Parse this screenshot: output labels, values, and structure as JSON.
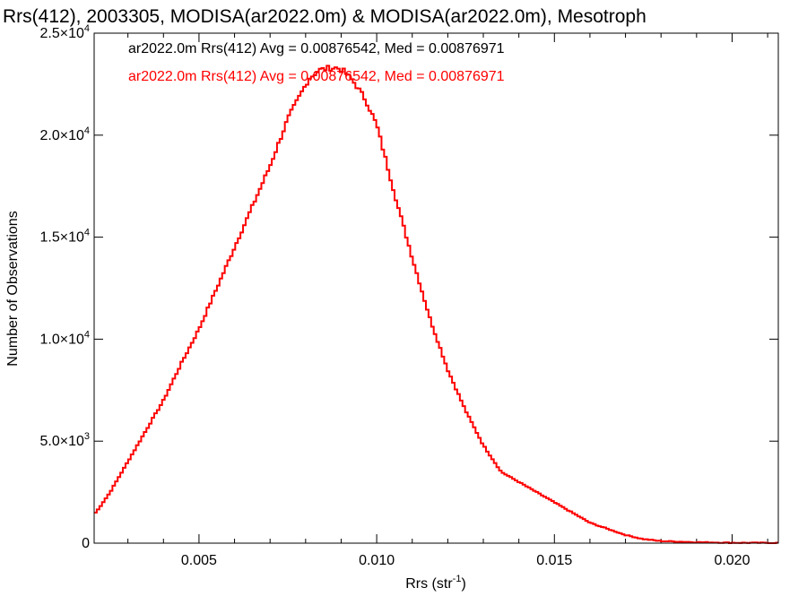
{
  "title": "Rrs(412), 2003305, MODISA(ar2022.0m) & MODISA(ar2022.0m), Mesotroph",
  "x_axis_label": "Rrs (str",
  "x_axis_label_sup": "-1",
  "x_axis_label_end": ")",
  "y_axis_label": "Number of Observations",
  "legend": [
    {
      "text": "ar2022.0m Rrs(412) Avg = 0.00876542, Med = 0.00876971",
      "color": "#000000"
    },
    {
      "text": "ar2022.0m Rrs(412) Avg = 0.00876542, Med = 0.00876971",
      "color": "#ff0000"
    }
  ],
  "chart_data": {
    "type": "histogram-step",
    "title": "Rrs(412), 2003305, MODISA(ar2022.0m) & MODISA(ar2022.0m), Mesotroph",
    "xlabel": "Rrs (str-1)",
    "ylabel": "Number of Observations",
    "xlim": [
      0.00205,
      0.0213
    ],
    "ylim": [
      0,
      25000
    ],
    "x_ticks": [
      {
        "value": 0.005,
        "label": "0.005"
      },
      {
        "value": 0.01,
        "label": "0.010"
      },
      {
        "value": 0.015,
        "label": "0.015"
      },
      {
        "value": 0.02,
        "label": "0.020"
      }
    ],
    "y_ticks": [
      {
        "value": 0,
        "mant": "0",
        "exp": ""
      },
      {
        "value": 5000,
        "mant": "5.0×10",
        "exp": "3"
      },
      {
        "value": 10000,
        "mant": "1.0×10",
        "exp": "4"
      },
      {
        "value": 15000,
        "mant": "1.5×10",
        "exp": "4"
      },
      {
        "value": 20000,
        "mant": "2.0×10",
        "exp": "4"
      },
      {
        "value": 25000,
        "mant": "2.5×10",
        "exp": "4"
      }
    ],
    "series": [
      {
        "name": "ar2022.0m Rrs(412)",
        "color": "#ff0000",
        "x": [
          0.0021,
          0.0025,
          0.003,
          0.0035,
          0.004,
          0.0045,
          0.005,
          0.0055,
          0.006,
          0.0065,
          0.007,
          0.0075,
          0.0078,
          0.0081,
          0.0084,
          0.0087,
          0.0089,
          0.0091,
          0.0094,
          0.0097,
          0.01,
          0.0103,
          0.0106,
          0.011,
          0.0115,
          0.012,
          0.0125,
          0.013,
          0.0135,
          0.014,
          0.0145,
          0.015,
          0.0155,
          0.016,
          0.0165,
          0.017,
          0.0175,
          0.018,
          0.019,
          0.02,
          0.0213
        ],
        "y": [
          1500,
          2500,
          4000,
          5500,
          7000,
          8800,
          10500,
          12500,
          14500,
          16500,
          18500,
          20800,
          21800,
          22800,
          23200,
          23300,
          23300,
          23100,
          22500,
          21700,
          20500,
          18500,
          16500,
          14000,
          11000,
          8500,
          6500,
          4800,
          3500,
          3000,
          2500,
          2000,
          1500,
          1000,
          700,
          400,
          200,
          100,
          50,
          20,
          10
        ]
      }
    ],
    "grid": false,
    "legend_position": "top-left"
  }
}
